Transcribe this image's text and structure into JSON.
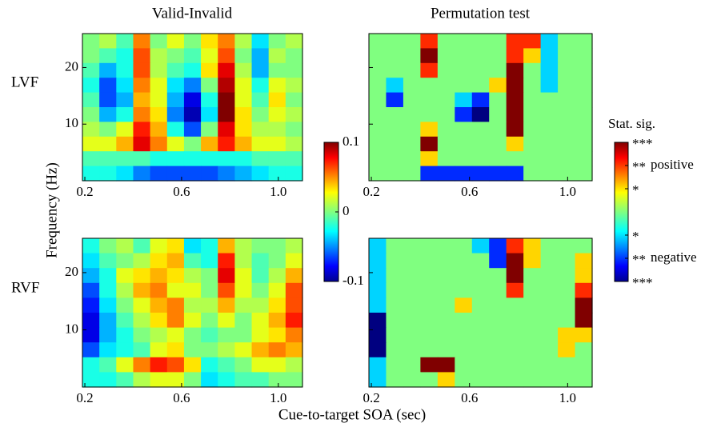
{
  "chart_data": [
    {
      "type": "heatmap",
      "title": "Valid-Invalid",
      "row_label": "LVF",
      "colormap": "jet",
      "xlim": [
        0.19,
        1.1
      ],
      "ylim": [
        0,
        26
      ],
      "xticks": [
        0.2,
        0.6,
        {
          "value": 1,
          "label": "1.0"
        }
      ],
      "yticks": [
        10,
        20
      ],
      "ytick_labels": true,
      "zlim": [
        -0.1,
        0.1
      ],
      "z": [
        [
          0,
          0.01,
          -0.01,
          0.05,
          0,
          0.02,
          0,
          0.03,
          0.05,
          0.01,
          -0.03,
          0,
          0.01
        ],
        [
          0,
          -0.01,
          -0.02,
          0.06,
          0.01,
          0,
          -0.01,
          0.02,
          0.06,
          0,
          -0.04,
          0.01,
          0
        ],
        [
          -0.01,
          -0.04,
          -0.02,
          0.06,
          0.01,
          -0.01,
          -0.02,
          0.03,
          0.08,
          0.01,
          -0.04,
          0,
          0
        ],
        [
          -0.02,
          -0.06,
          -0.03,
          0.05,
          0.02,
          -0.03,
          -0.05,
          0,
          0.09,
          0.02,
          -0.02,
          0.02,
          0.01
        ],
        [
          -0.01,
          -0.06,
          -0.04,
          0.04,
          0.02,
          -0.04,
          -0.08,
          -0.02,
          0.1,
          0.02,
          -0.01,
          0.03,
          0
        ],
        [
          0,
          -0.04,
          -0.02,
          0.05,
          0.03,
          -0.05,
          -0.09,
          -0.03,
          0.1,
          0.03,
          0,
          0.02,
          0.01
        ],
        [
          0.01,
          0,
          0.02,
          0.07,
          0.04,
          -0.02,
          -0.06,
          0,
          0.08,
          0.03,
          0.01,
          0.01,
          0
        ],
        [
          0.02,
          0.02,
          0.04,
          0.08,
          0.05,
          0.02,
          0,
          0.04,
          0.07,
          0.04,
          0.02,
          0.02,
          0.01
        ],
        [
          -0.01,
          -0.01,
          -0.01,
          -0.01,
          -0.02,
          -0.02,
          -0.02,
          -0.02,
          -0.02,
          -0.02,
          -0.01,
          -0.01,
          -0.01
        ],
        [
          -0.02,
          -0.02,
          -0.03,
          -0.05,
          -0.06,
          -0.06,
          -0.06,
          -0.06,
          -0.05,
          -0.04,
          -0.03,
          -0.02,
          -0.02
        ]
      ]
    },
    {
      "type": "heatmap",
      "title": "Permutation test",
      "colormap": "jet",
      "xlim": [
        0.19,
        1.1
      ],
      "ylim": [
        0,
        26
      ],
      "xticks": [
        0.2,
        0.6,
        {
          "value": 1,
          "label": "1.0"
        }
      ],
      "yticks": [
        10,
        20
      ],
      "ytick_labels": false,
      "zlim": [
        -3,
        3
      ],
      "z": [
        [
          0,
          0,
          0,
          2,
          0,
          0,
          0,
          0,
          2,
          2,
          -1,
          0,
          0
        ],
        [
          0,
          0,
          0,
          3,
          0,
          0,
          0,
          0,
          2,
          1,
          -1,
          0,
          0
        ],
        [
          0,
          0,
          0,
          2,
          0,
          0,
          0,
          0,
          3,
          0,
          -1,
          0,
          0
        ],
        [
          0,
          -1,
          0,
          0,
          0,
          0,
          0,
          1,
          3,
          0,
          -1,
          0,
          0
        ],
        [
          0,
          -2,
          0,
          0,
          0,
          -1,
          -2,
          0,
          3,
          0,
          0,
          0,
          0
        ],
        [
          0,
          0,
          0,
          0,
          0,
          -2,
          -3,
          0,
          3,
          0,
          0,
          0,
          0
        ],
        [
          0,
          0,
          0,
          1,
          0,
          0,
          0,
          0,
          3,
          0,
          0,
          0,
          0
        ],
        [
          0,
          0,
          0,
          3,
          0,
          0,
          0,
          0,
          1,
          0,
          0,
          0,
          0
        ],
        [
          0,
          0,
          0,
          1,
          0,
          0,
          0,
          0,
          0,
          0,
          0,
          0,
          0
        ],
        [
          0,
          0,
          0,
          -2,
          -2,
          -2,
          -2,
          -2,
          -2,
          0,
          0,
          0,
          0
        ]
      ]
    },
    {
      "type": "heatmap",
      "row_label": "RVF",
      "colormap": "jet",
      "xlim": [
        0.19,
        1.1
      ],
      "ylim": [
        0,
        26
      ],
      "xticks": [
        0.2,
        0.6,
        {
          "value": 1,
          "label": "1.0"
        }
      ],
      "yticks": [
        10,
        20
      ],
      "ytick_labels": true,
      "zlim": [
        -0.1,
        0.1
      ],
      "z": [
        [
          -0.02,
          0,
          0.01,
          -0.01,
          0.02,
          0.03,
          -0.03,
          -0.02,
          0.04,
          0.01,
          0,
          0,
          0.01
        ],
        [
          -0.03,
          -0.01,
          0,
          0.01,
          0.03,
          0.04,
          -0.01,
          -0.02,
          0.07,
          0.01,
          -0.01,
          0,
          0.02
        ],
        [
          -0.04,
          -0.02,
          0.02,
          0.03,
          0.04,
          0.03,
          0.01,
          0,
          0.08,
          0.02,
          -0.01,
          0.01,
          0.04
        ],
        [
          -0.06,
          -0.02,
          0.01,
          0.04,
          0.05,
          0.02,
          0.02,
          0,
          0.06,
          0.02,
          0,
          0.02,
          0.06
        ],
        [
          -0.07,
          -0.03,
          0,
          0.02,
          0.04,
          0.05,
          0.01,
          0.01,
          0.04,
          0.01,
          0.01,
          0.03,
          0.06
        ],
        [
          -0.08,
          -0.04,
          -0.01,
          0.01,
          0.03,
          0.05,
          0.02,
          0,
          0.02,
          0,
          0.02,
          0.04,
          0.07
        ],
        [
          -0.08,
          -0.04,
          -0.02,
          0,
          0.01,
          0.02,
          0,
          -0.01,
          0,
          0,
          0.02,
          0.03,
          0.05
        ],
        [
          -0.06,
          -0.03,
          -0.02,
          -0.01,
          0.02,
          0.03,
          0,
          0,
          0.01,
          0.02,
          0.04,
          0.05,
          0.04
        ],
        [
          -0.02,
          -0.01,
          0.02,
          0.05,
          0.07,
          0.06,
          0.03,
          -0.02,
          -0.01,
          0,
          0.02,
          0.02,
          0.01
        ],
        [
          -0.02,
          -0.02,
          -0.01,
          0.01,
          0.02,
          0.02,
          0,
          -0.03,
          -0.02,
          -0.01,
          -0.01,
          0,
          0
        ]
      ]
    },
    {
      "type": "heatmap",
      "colormap": "jet",
      "xlim": [
        0.19,
        1.1
      ],
      "ylim": [
        0,
        26
      ],
      "xticks": [
        0.2,
        0.6,
        {
          "value": 1,
          "label": "1.0"
        }
      ],
      "yticks": [
        10,
        20
      ],
      "ytick_labels": false,
      "zlim": [
        -3,
        3
      ],
      "z": [
        [
          -1,
          0,
          0,
          0,
          0,
          0,
          -1,
          -2,
          2,
          1,
          0,
          0,
          0
        ],
        [
          -1,
          0,
          0,
          0,
          0,
          0,
          0,
          -2,
          3,
          1,
          0,
          0,
          1
        ],
        [
          -1,
          0,
          0,
          0,
          0,
          0,
          0,
          0,
          3,
          0,
          0,
          0,
          1
        ],
        [
          -1,
          0,
          0,
          0,
          0,
          0,
          0,
          0,
          2,
          0,
          0,
          0,
          2
        ],
        [
          -1,
          0,
          0,
          0,
          0,
          1,
          0,
          0,
          0,
          0,
          0,
          0,
          3
        ],
        [
          -3,
          0,
          0,
          0,
          0,
          0,
          0,
          0,
          0,
          0,
          0,
          0,
          3
        ],
        [
          -3,
          0,
          0,
          0,
          0,
          0,
          0,
          0,
          0,
          0,
          0,
          1,
          1
        ],
        [
          -3,
          0,
          0,
          0,
          0,
          0,
          0,
          0,
          0,
          0,
          0,
          1,
          0
        ],
        [
          -1,
          0,
          0,
          3,
          3,
          0,
          0,
          0,
          0,
          0,
          0,
          0,
          0
        ],
        [
          -1,
          0,
          0,
          0,
          1,
          0,
          0,
          0,
          0,
          0,
          0,
          0,
          0
        ]
      ]
    }
  ],
  "xlabel": "Cue-to-target SOA (sec)",
  "ylabel": "Frequency (Hz)",
  "colorbars": [
    {
      "colormap": "jet",
      "lim": [
        -0.1,
        0.1
      ],
      "ticks": [
        0.1,
        0,
        -0.1
      ]
    },
    {
      "colormap": "jet",
      "title": "Stat. sig.",
      "lim": [
        -3,
        3
      ],
      "ticks": [
        {
          "value": 3,
          "label": "***"
        },
        {
          "value": 2,
          "label": "**"
        },
        {
          "value": 1,
          "label": "*"
        },
        {
          "value": -1,
          "label": "*"
        },
        {
          "value": -2,
          "label": "**"
        },
        {
          "value": -3,
          "label": "***"
        }
      ],
      "annotations": [
        {
          "text": "positive",
          "value": 2
        },
        {
          "text": "negative",
          "value": -2
        }
      ]
    }
  ]
}
